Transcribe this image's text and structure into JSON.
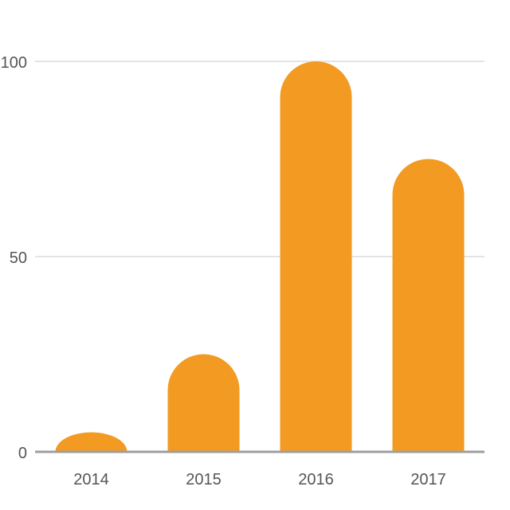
{
  "chart_data": {
    "type": "bar",
    "categories": [
      "2014",
      "2015",
      "2016",
      "2017"
    ],
    "values": [
      5,
      25,
      100,
      75
    ],
    "ylim": [
      0,
      100
    ],
    "yticks": [
      0,
      50,
      100
    ],
    "grid": true,
    "legend": "none",
    "title": "",
    "xlabel": "",
    "ylabel": "",
    "bar_color": "#f39a22",
    "grid_color": "#e4e4e4",
    "baseline_color": "#9e9e9e",
    "tick_color": "#555555"
  }
}
